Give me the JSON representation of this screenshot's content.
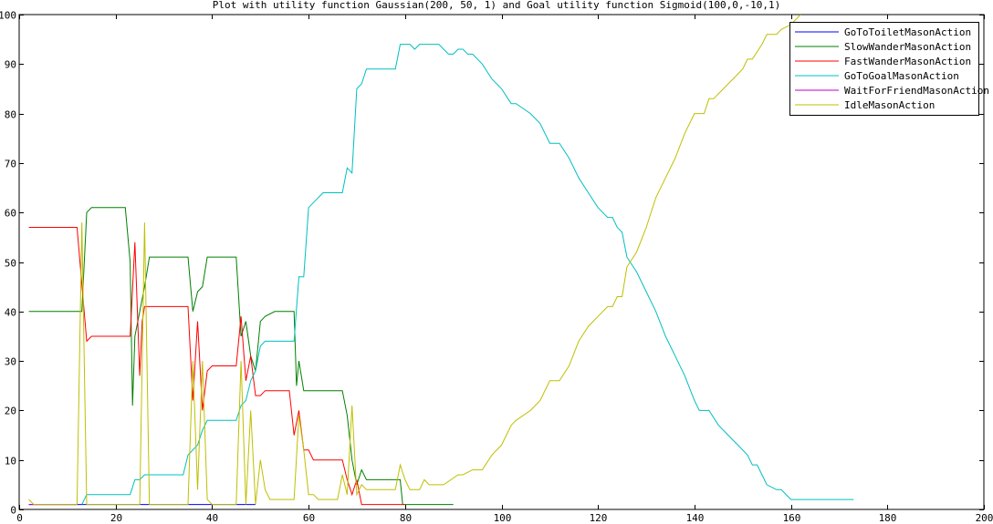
{
  "chart_data": {
    "type": "line",
    "title": "Plot with utility function Gaussian(200, 50, 1) and Goal utility function Sigmoid(100,0,-10,1)",
    "xlabel": "",
    "ylabel": "",
    "xlim": [
      0,
      200
    ],
    "ylim": [
      0,
      100
    ],
    "xticks": [
      0,
      20,
      40,
      60,
      80,
      100,
      120,
      140,
      160,
      180,
      200
    ],
    "yticks": [
      0,
      10,
      20,
      30,
      40,
      50,
      60,
      70,
      80,
      90,
      100
    ],
    "grid": false,
    "legend_position": "top-right",
    "series": [
      {
        "name": "GoToToiletMasonAction",
        "color": "#0000ff",
        "points": [
          [
            2,
            1
          ],
          [
            13,
            1
          ],
          [
            49,
            1
          ]
        ]
      },
      {
        "name": "SlowWanderMasonAction",
        "color": "#007f00",
        "points": [
          [
            2,
            40
          ],
          [
            13,
            40
          ],
          [
            14,
            60
          ],
          [
            15,
            61
          ],
          [
            22,
            61
          ],
          [
            23,
            50
          ],
          [
            23.5,
            21
          ],
          [
            24,
            35
          ],
          [
            26,
            45
          ],
          [
            27,
            51
          ],
          [
            35,
            51
          ],
          [
            36,
            40
          ],
          [
            37,
            44
          ],
          [
            38,
            45
          ],
          [
            39,
            51
          ],
          [
            45,
            51
          ],
          [
            46,
            35
          ],
          [
            47,
            38
          ],
          [
            48,
            31
          ],
          [
            49,
            28
          ],
          [
            50,
            38
          ],
          [
            51,
            39
          ],
          [
            53,
            40
          ],
          [
            57,
            40
          ],
          [
            57.5,
            25
          ],
          [
            58,
            30
          ],
          [
            59,
            24
          ],
          [
            67,
            24
          ],
          [
            68,
            19
          ],
          [
            69,
            10
          ],
          [
            70,
            5
          ],
          [
            71,
            8
          ],
          [
            72,
            6
          ],
          [
            79,
            6
          ],
          [
            79.5,
            1
          ],
          [
            90,
            1
          ]
        ]
      },
      {
        "name": "FastWanderMasonAction",
        "color": "#ff0000",
        "points": [
          [
            2,
            57
          ],
          [
            12,
            57
          ],
          [
            14,
            34
          ],
          [
            15,
            35
          ],
          [
            23,
            35
          ],
          [
            24,
            54
          ],
          [
            25,
            27
          ],
          [
            25.5,
            38
          ],
          [
            26,
            41
          ],
          [
            35,
            41
          ],
          [
            36,
            22
          ],
          [
            37,
            38
          ],
          [
            38,
            20
          ],
          [
            39,
            28
          ],
          [
            40,
            29
          ],
          [
            45,
            29
          ],
          [
            46,
            39
          ],
          [
            47,
            26
          ],
          [
            48,
            31
          ],
          [
            49,
            23
          ],
          [
            50,
            23
          ],
          [
            51,
            24
          ],
          [
            56,
            24
          ],
          [
            57,
            15
          ],
          [
            58,
            20
          ],
          [
            59,
            12
          ],
          [
            60,
            12
          ],
          [
            61,
            10
          ],
          [
            67,
            10
          ],
          [
            68,
            6
          ],
          [
            69,
            3
          ],
          [
            70,
            6
          ],
          [
            71,
            1
          ],
          [
            80,
            1
          ]
        ]
      },
      {
        "name": "GoToGoalMasonAction",
        "color": "#00bfbf",
        "points": [
          [
            13,
            1
          ],
          [
            14,
            3
          ],
          [
            23,
            3
          ],
          [
            24,
            6
          ],
          [
            25,
            6
          ],
          [
            26,
            7
          ],
          [
            34,
            7
          ],
          [
            35,
            11
          ],
          [
            37,
            13
          ],
          [
            38,
            16
          ],
          [
            39,
            18
          ],
          [
            45,
            18
          ],
          [
            46,
            21
          ],
          [
            47,
            22
          ],
          [
            48,
            26
          ],
          [
            49,
            28
          ],
          [
            50,
            33
          ],
          [
            51,
            34
          ],
          [
            57,
            34
          ],
          [
            58,
            47
          ],
          [
            59,
            47
          ],
          [
            60,
            61
          ],
          [
            61,
            62
          ],
          [
            63,
            64
          ],
          [
            67,
            64
          ],
          [
            68,
            69
          ],
          [
            69,
            68
          ],
          [
            70,
            85
          ],
          [
            71,
            86
          ],
          [
            72,
            89
          ],
          [
            78,
            89
          ],
          [
            79,
            94
          ],
          [
            81,
            94
          ],
          [
            82,
            93
          ],
          [
            83,
            94
          ],
          [
            87,
            94
          ],
          [
            89,
            92
          ],
          [
            90,
            92
          ],
          [
            91,
            93
          ],
          [
            92,
            93
          ],
          [
            93,
            92
          ],
          [
            94,
            92
          ],
          [
            96,
            90
          ],
          [
            98,
            87
          ],
          [
            100,
            85
          ],
          [
            102,
            82
          ],
          [
            103,
            82
          ],
          [
            106,
            80
          ],
          [
            108,
            78
          ],
          [
            110,
            74
          ],
          [
            112,
            74
          ],
          [
            114,
            71
          ],
          [
            116,
            67
          ],
          [
            118,
            64
          ],
          [
            120,
            61
          ],
          [
            122,
            59
          ],
          [
            123,
            59
          ],
          [
            124,
            57
          ],
          [
            125,
            56
          ],
          [
            126,
            51
          ],
          [
            128,
            48
          ],
          [
            130,
            44
          ],
          [
            132,
            40
          ],
          [
            134,
            35
          ],
          [
            136,
            31
          ],
          [
            138,
            27
          ],
          [
            140,
            22
          ],
          [
            141,
            20
          ],
          [
            143,
            20
          ],
          [
            145,
            17
          ],
          [
            147,
            15
          ],
          [
            149,
            13
          ],
          [
            151,
            11
          ],
          [
            152,
            9
          ],
          [
            153,
            9
          ],
          [
            155,
            5
          ],
          [
            157,
            4
          ],
          [
            158,
            4
          ],
          [
            160,
            2
          ],
          [
            173,
            2
          ]
        ]
      },
      {
        "name": "WaitForFriendMasonAction",
        "color": "#bf00bf",
        "points": [
          [
            2,
            1
          ],
          [
            6,
            1
          ],
          [
            12,
            1
          ]
        ]
      },
      {
        "name": "IdleMasonAction",
        "color": "#bfbf00",
        "points": [
          [
            2,
            2
          ],
          [
            3,
            1
          ],
          [
            12,
            1
          ],
          [
            13,
            58
          ],
          [
            14,
            1
          ],
          [
            25,
            1
          ],
          [
            26,
            58
          ],
          [
            27,
            1
          ],
          [
            35,
            1
          ],
          [
            36,
            30
          ],
          [
            37,
            4
          ],
          [
            38,
            30
          ],
          [
            39,
            2
          ],
          [
            40,
            1
          ],
          [
            45,
            1
          ],
          [
            46,
            30
          ],
          [
            47,
            1
          ],
          [
            48,
            20
          ],
          [
            49,
            1
          ],
          [
            50,
            10
          ],
          [
            51,
            4
          ],
          [
            52,
            2
          ],
          [
            57,
            2
          ],
          [
            58,
            19
          ],
          [
            59,
            12
          ],
          [
            60,
            3
          ],
          [
            61,
            3
          ],
          [
            62,
            2
          ],
          [
            66,
            2
          ],
          [
            67,
            7
          ],
          [
            68,
            3
          ],
          [
            69,
            21
          ],
          [
            70,
            3
          ],
          [
            71,
            5
          ],
          [
            72,
            4
          ],
          [
            78,
            4
          ],
          [
            79,
            9
          ],
          [
            80,
            6
          ],
          [
            81,
            4
          ],
          [
            83,
            4
          ],
          [
            84,
            6
          ],
          [
            85,
            5
          ],
          [
            88,
            5
          ],
          [
            91,
            7
          ],
          [
            92,
            7
          ],
          [
            94,
            8
          ],
          [
            96,
            8
          ],
          [
            98,
            11
          ],
          [
            100,
            13
          ],
          [
            102,
            17
          ],
          [
            103,
            18
          ],
          [
            106,
            20
          ],
          [
            108,
            22
          ],
          [
            110,
            26
          ],
          [
            112,
            26
          ],
          [
            114,
            29
          ],
          [
            116,
            34
          ],
          [
            118,
            37
          ],
          [
            120,
            39
          ],
          [
            122,
            41
          ],
          [
            123,
            41
          ],
          [
            124,
            43
          ],
          [
            125,
            43
          ],
          [
            126,
            49
          ],
          [
            128,
            52
          ],
          [
            130,
            57
          ],
          [
            132,
            63
          ],
          [
            134,
            67
          ],
          [
            136,
            71
          ],
          [
            138,
            76
          ],
          [
            140,
            80
          ],
          [
            142,
            80
          ],
          [
            143,
            83
          ],
          [
            144,
            83
          ],
          [
            146,
            85
          ],
          [
            148,
            87
          ],
          [
            150,
            89
          ],
          [
            151,
            91
          ],
          [
            152,
            91
          ],
          [
            154,
            94
          ],
          [
            155,
            96
          ],
          [
            157,
            96
          ],
          [
            158,
            97
          ],
          [
            160,
            98
          ],
          [
            162,
            100
          ]
        ]
      }
    ]
  }
}
